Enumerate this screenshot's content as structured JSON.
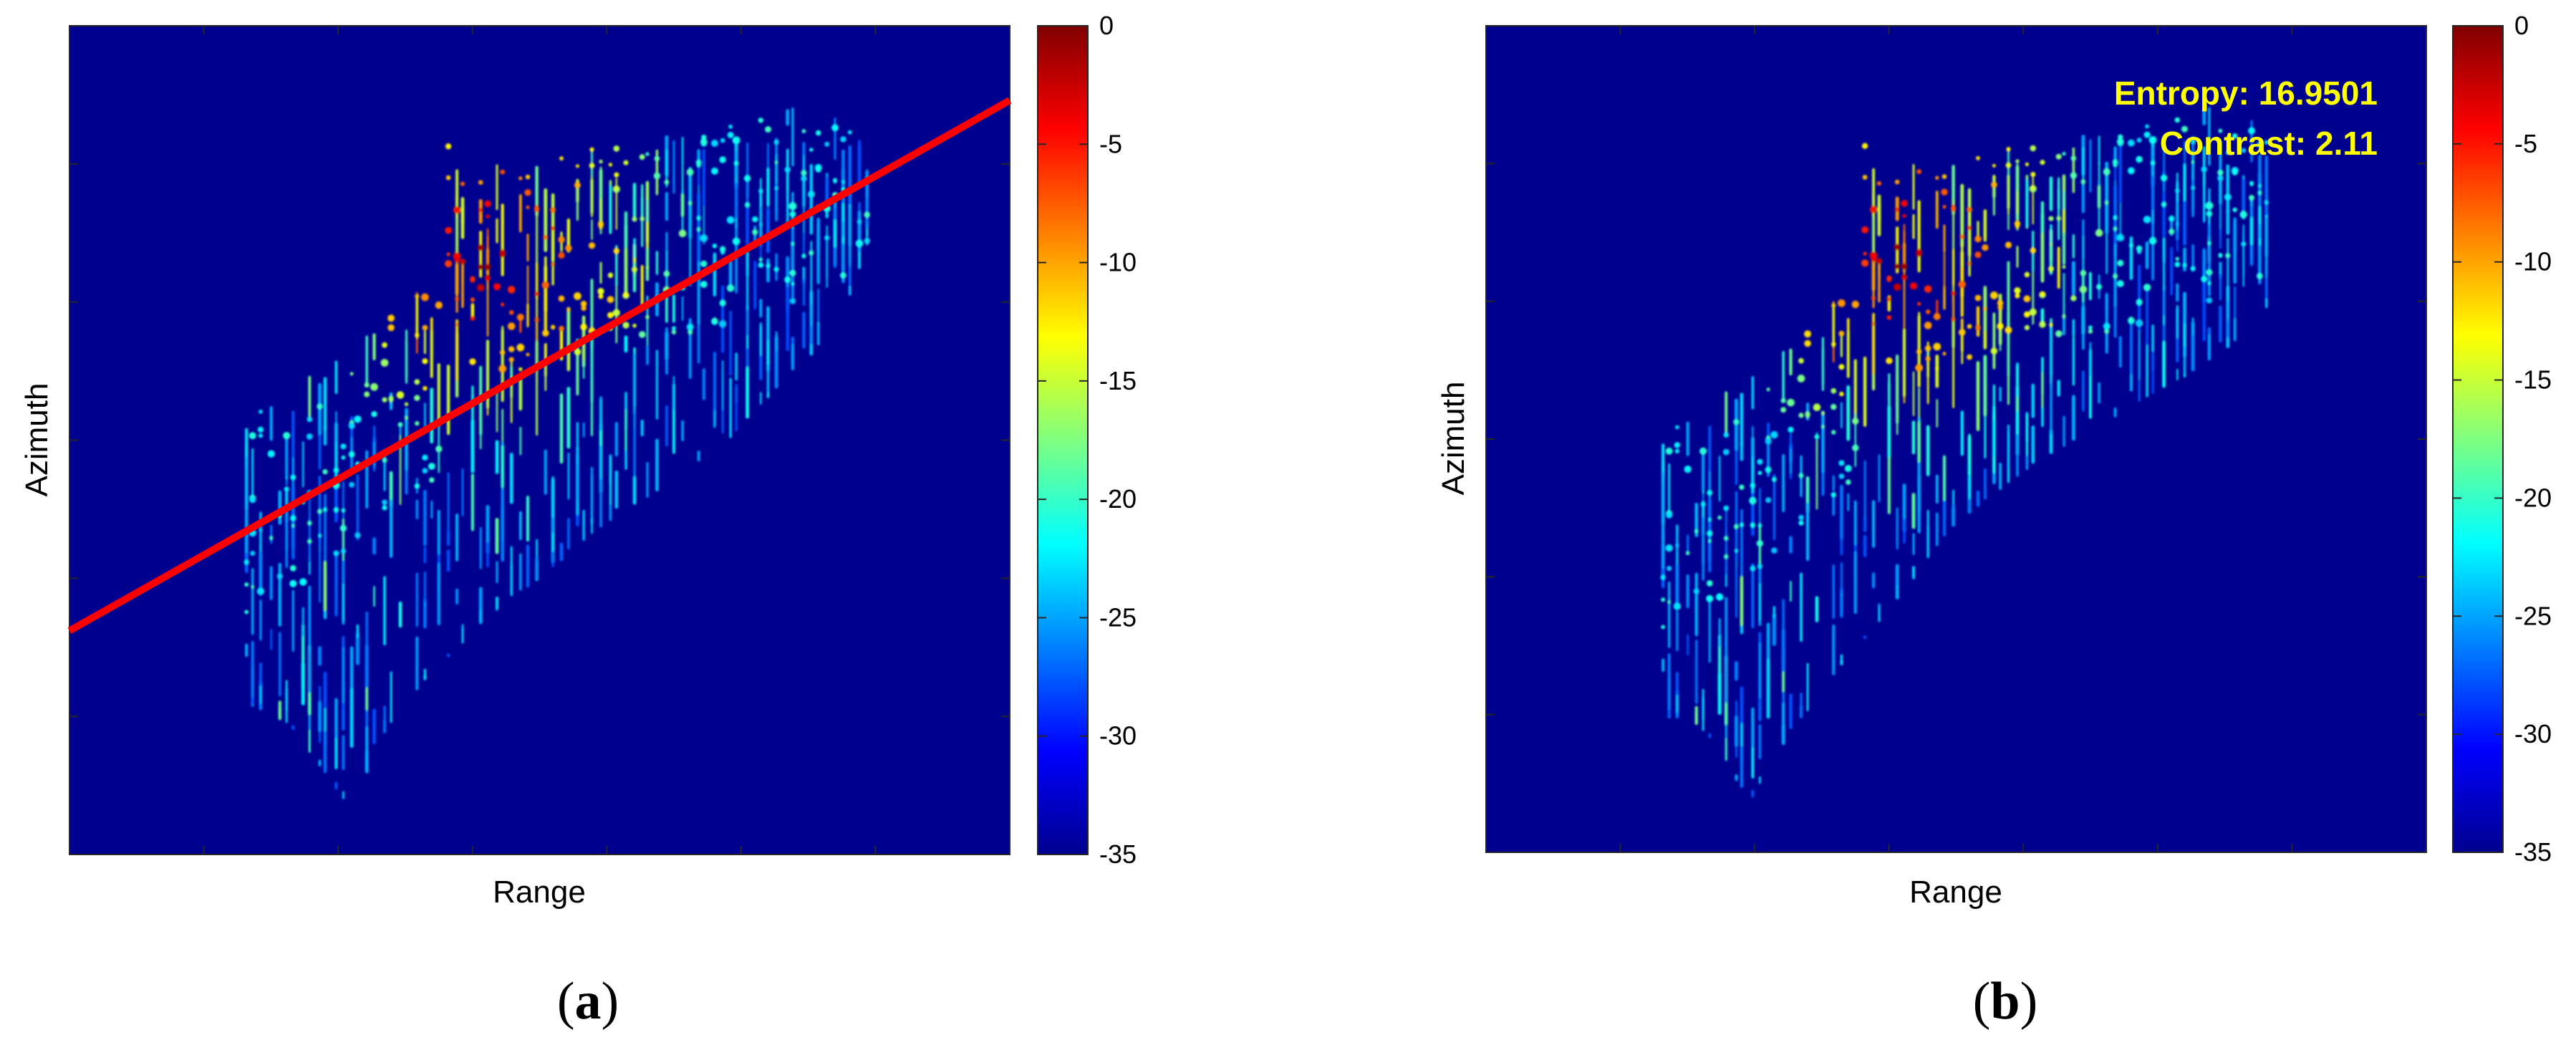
{
  "chart_data": [
    {
      "type": "heatmap",
      "panel_label": "(a)",
      "panel_letter": "a",
      "xlabel": "Range",
      "ylabel": "Azimuth",
      "colorbar": {
        "colormap": "jet",
        "range": [
          -35,
          0
        ],
        "ticks": [
          0,
          -5,
          -10,
          -15,
          -20,
          -25,
          -30,
          -35
        ],
        "tick_labels": [
          "0",
          "-5",
          "-10",
          "-15",
          "-20",
          "-25",
          "-30",
          "-35"
        ]
      },
      "background_color": "#00008f",
      "overlay_line": {
        "color": "#ff0000",
        "x_fraction": [
          0,
          1
        ],
        "y_fraction_from_top": [
          0.73,
          0.09
        ]
      },
      "annotations": [],
      "grid": false,
      "x_ticks_labeled": false,
      "y_ticks_labeled": false
    },
    {
      "type": "heatmap",
      "panel_label": "(b)",
      "panel_letter": "b",
      "xlabel": "Range",
      "ylabel": "Azimuth",
      "colorbar": {
        "colormap": "jet",
        "range": [
          -35,
          0
        ],
        "ticks": [
          0,
          -5,
          -10,
          -15,
          -20,
          -25,
          -30,
          -35
        ],
        "tick_labels": [
          "0",
          "-5",
          "-10",
          "-15",
          "-20",
          "-25",
          "-30",
          "-35"
        ]
      },
      "background_color": "#00008f",
      "overlay_line": null,
      "annotations": [
        "Entropy: 16.9501",
        "Contrast: 2.11"
      ],
      "grid": false,
      "x_ticks_labeled": false,
      "y_ticks_labeled": false
    }
  ],
  "colors": {
    "image_background": "#00008f",
    "overlay_line": "#ff0000",
    "annotation_text": "#ffff00"
  }
}
